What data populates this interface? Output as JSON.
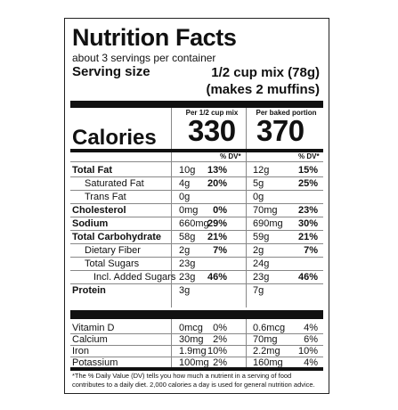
{
  "label": {
    "title": "Nutrition Facts",
    "servings_per_container": "about 3 servings per container",
    "serving_size_label": "Serving size",
    "serving_size_value_1": "1/2 cup mix (78g)",
    "serving_size_value_2": "(makes 2 muffins)",
    "col1_header": "Per 1/2 cup mix",
    "col2_header": "Per baked portion",
    "calories_label": "Calories",
    "calories_col1": "330",
    "calories_col2": "370",
    "dv_header": "% DV*",
    "nutrients": [
      {
        "name": "Total Fat",
        "a1": "10g",
        "p1": "13%",
        "a2": "12g",
        "p2": "15%"
      },
      {
        "name": "Saturated Fat",
        "a1": "4g",
        "p1": "20%",
        "a2": "5g",
        "p2": "25%"
      },
      {
        "name": "Trans Fat",
        "a1": "0g",
        "p1": "",
        "a2": "0g",
        "p2": ""
      },
      {
        "name": "Cholesterol",
        "a1": "0mg",
        "p1": "0%",
        "a2": "70mg",
        "p2": "23%"
      },
      {
        "name": "Sodium",
        "a1": "660mg",
        "p1": "29%",
        "a2": "690mg",
        "p2": "30%"
      },
      {
        "name": "Total Carbohydrate",
        "a1": "58g",
        "p1": "21%",
        "a2": "59g",
        "p2": "21%"
      },
      {
        "name": "Dietary Fiber",
        "a1": "2g",
        "p1": "7%",
        "a2": "2g",
        "p2": "7%"
      },
      {
        "name": "Total Sugars",
        "a1": "23g",
        "p1": "",
        "a2": "24g",
        "p2": ""
      },
      {
        "name": "Incl. Added Sugars",
        "a1": "23g",
        "p1": "46%",
        "a2": "23g",
        "p2": "46%"
      },
      {
        "name": "Protein",
        "a1": "3g",
        "p1": "",
        "a2": "7g",
        "p2": ""
      }
    ],
    "minerals": [
      {
        "name": "Vitamin D",
        "a1": "0mcg",
        "p1": "0%",
        "a2": "0.6mcg",
        "p2": "4%"
      },
      {
        "name": "Calcium",
        "a1": "30mg",
        "p1": "2%",
        "a2": "70mg",
        "p2": "6%"
      },
      {
        "name": "Iron",
        "a1": "1.9mg",
        "p1": "10%",
        "a2": "2.2mg",
        "p2": "10%"
      },
      {
        "name": "Potassium",
        "a1": "100mg",
        "p1": "2%",
        "a2": "160mg",
        "p2": "4%"
      }
    ],
    "footnote": "*The % Daily Value (DV) tells you how much a nutrient in a serving of food contributes to a daily diet. 2,000 calories a day is used for general nutrition advice."
  }
}
